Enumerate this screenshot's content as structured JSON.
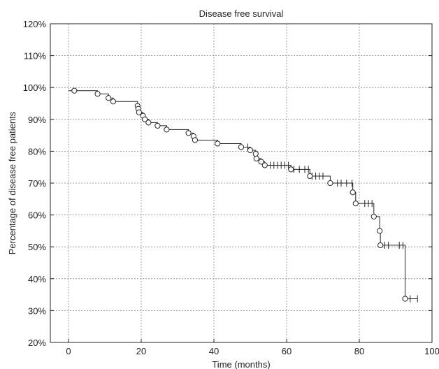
{
  "chart_data": {
    "type": "line",
    "title": "Disease free survival",
    "xlabel": "Time (months)",
    "ylabel": "Percentage of disease free patients",
    "xlim": [
      -5,
      100
    ],
    "ylim": [
      20,
      120
    ],
    "x_ticks": [
      0,
      20,
      40,
      60,
      80,
      100
    ],
    "y_ticks": [
      20,
      30,
      40,
      50,
      60,
      70,
      80,
      90,
      100,
      110,
      120
    ],
    "x_tick_labels": [
      "0",
      "20",
      "40",
      "60",
      "80",
      "100"
    ],
    "y_tick_labels": [
      "20%",
      "30%",
      "40%",
      "50%",
      "60%",
      "70%",
      "80%",
      "90%",
      "100%",
      "110%",
      "120%"
    ],
    "grid": true,
    "series": [
      {
        "steps": [
          [
            0,
            99
          ],
          [
            8,
            98
          ],
          [
            11,
            96.7
          ],
          [
            12.3,
            95.6
          ],
          [
            19,
            94.2
          ],
          [
            19.2,
            93.3
          ],
          [
            19.4,
            92.2
          ],
          [
            20.5,
            91.1
          ],
          [
            21,
            90
          ],
          [
            22,
            89
          ],
          [
            24.5,
            88
          ],
          [
            27,
            86.8
          ],
          [
            33,
            85.7
          ],
          [
            34.4,
            84.7
          ],
          [
            34.8,
            83.5
          ],
          [
            41,
            82.4
          ],
          [
            47.5,
            81.3
          ],
          [
            50,
            80.3
          ],
          [
            51.5,
            79.2
          ],
          [
            51.7,
            77.7
          ],
          [
            53,
            76.7
          ],
          [
            54,
            75.6
          ],
          [
            61.2,
            74.3
          ],
          [
            66.4,
            72.2
          ],
          [
            72,
            70
          ],
          [
            78.2,
            67.1
          ],
          [
            79,
            63.6
          ],
          [
            84,
            59.5
          ],
          [
            85.6,
            55
          ],
          [
            85.8,
            50.5
          ],
          [
            92.6,
            33.7
          ],
          [
            96,
            33.7
          ]
        ],
        "events": [
          [
            1.6,
            99
          ],
          [
            8,
            98
          ],
          [
            11,
            96.7
          ],
          [
            12.3,
            95.6
          ],
          [
            19,
            94.2
          ],
          [
            19.2,
            93.3
          ],
          [
            19.4,
            92.2
          ],
          [
            20.5,
            91.1
          ],
          [
            21,
            90
          ],
          [
            22,
            89
          ],
          [
            24.5,
            88
          ],
          [
            27,
            86.8
          ],
          [
            33,
            85.7
          ],
          [
            34.4,
            84.7
          ],
          [
            34.8,
            83.5
          ],
          [
            41,
            82.4
          ],
          [
            47.5,
            81.3
          ],
          [
            50,
            80.3
          ],
          [
            51.5,
            79.2
          ],
          [
            51.7,
            77.7
          ],
          [
            53,
            76.7
          ],
          [
            54,
            75.6
          ],
          [
            61.2,
            74.3
          ],
          [
            66.4,
            72.2
          ],
          [
            72,
            70
          ],
          [
            78.2,
            67.1
          ],
          [
            79,
            63.6
          ],
          [
            84,
            59.5
          ],
          [
            85.6,
            55
          ],
          [
            85.8,
            50.5
          ],
          [
            92.6,
            33.7
          ]
        ],
        "censored": [
          [
            49.3,
            81.3
          ],
          [
            55.5,
            75.6
          ],
          [
            56.5,
            75.6
          ],
          [
            57.5,
            75.6
          ],
          [
            58.5,
            75.6
          ],
          [
            59.5,
            75.6
          ],
          [
            60.5,
            75.6
          ],
          [
            62,
            74.3
          ],
          [
            63.5,
            74.3
          ],
          [
            65,
            74.3
          ],
          [
            66,
            74.3
          ],
          [
            67,
            72.2
          ],
          [
            68,
            72.2
          ],
          [
            69,
            72.2
          ],
          [
            70,
            72.2
          ],
          [
            74,
            70
          ],
          [
            75,
            70
          ],
          [
            76.5,
            70
          ],
          [
            78,
            70
          ],
          [
            81.5,
            63.6
          ],
          [
            82.5,
            63.6
          ],
          [
            83.5,
            63.6
          ],
          [
            87,
            50.5
          ],
          [
            88,
            50.5
          ],
          [
            91,
            50.5
          ],
          [
            92,
            50.5
          ],
          [
            94,
            33.7
          ],
          [
            96,
            33.7
          ]
        ]
      }
    ]
  }
}
